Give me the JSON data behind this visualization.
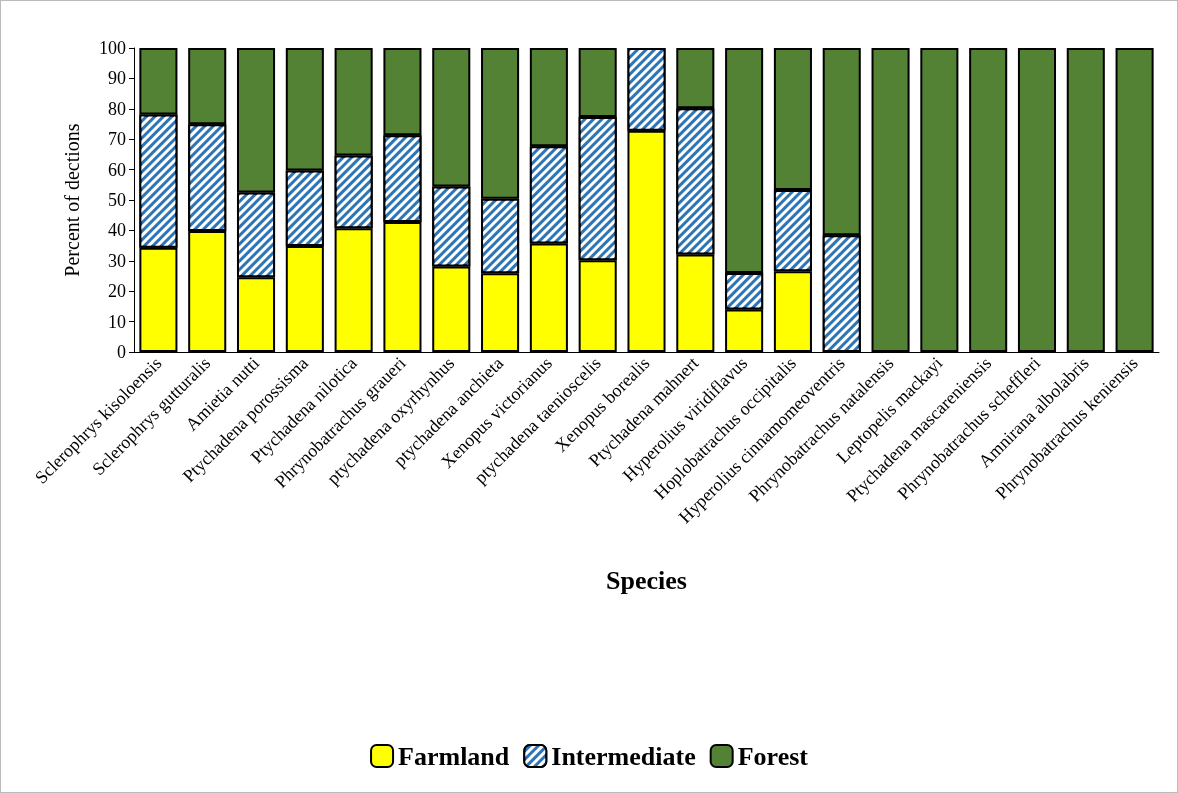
{
  "chart_data": {
    "type": "bar",
    "stacked": true,
    "xlabel": "Species",
    "ylabel": "Percent of dections",
    "categories": [
      "Sclerophrys kisoloensis",
      "Sclerophrys gutturalis",
      "Amietia nutti",
      "Ptychadena porossisma",
      "Ptychadena nilotica",
      "Phrynobatrachus graueri",
      "ptychadena oxyrhynhus",
      "ptychadena anchieta",
      "Xenopus victorianus",
      "ptychadena taenioscelis",
      "Xenopus borealis",
      "Ptychadena mahnert",
      "Hyperolius viridiflavus",
      "Hoplobatrachus occipitalis",
      "Hyperolius cinnamomeoventris",
      "Phrynobatrachus natalensis",
      "Leptopelis mackayi",
      "Ptychadena mascareniensis",
      "Phrynobatrachus scheffleri",
      "Amnirana albolabris",
      "Phrynobatrachus keniensis"
    ],
    "series": [
      {
        "name": "Farmland",
        "color": "#ffff00",
        "values": [
          34.3,
          39.8,
          24.6,
          34.9,
          40.7,
          42.8,
          28.1,
          25.9,
          35.7,
          30.2,
          72.8,
          32.1,
          14.0,
          26.6,
          0,
          0,
          0,
          0,
          0,
          0,
          0
        ]
      },
      {
        "name": "Intermediate",
        "color": "#2e75b6",
        "values": [
          43.8,
          35.1,
          27.9,
          24.8,
          23.9,
          28.5,
          26.3,
          24.5,
          32.0,
          47.1,
          27.2,
          48.1,
          12.0,
          26.7,
          38.4,
          0,
          0,
          0,
          0,
          0,
          0
        ]
      },
      {
        "name": "Forest",
        "color": "#548235",
        "values": [
          21.9,
          25.1,
          47.5,
          40.3,
          35.4,
          28.7,
          45.6,
          49.6,
          32.3,
          22.7,
          0,
          19.8,
          74.0,
          46.7,
          61.6,
          100,
          100,
          100,
          100,
          100,
          100
        ]
      }
    ],
    "ylim": [
      0,
      100
    ],
    "yticks": [
      0,
      10,
      20,
      30,
      40,
      50,
      60,
      70,
      80,
      90,
      100
    ],
    "grid": false,
    "legend": "bottom"
  }
}
